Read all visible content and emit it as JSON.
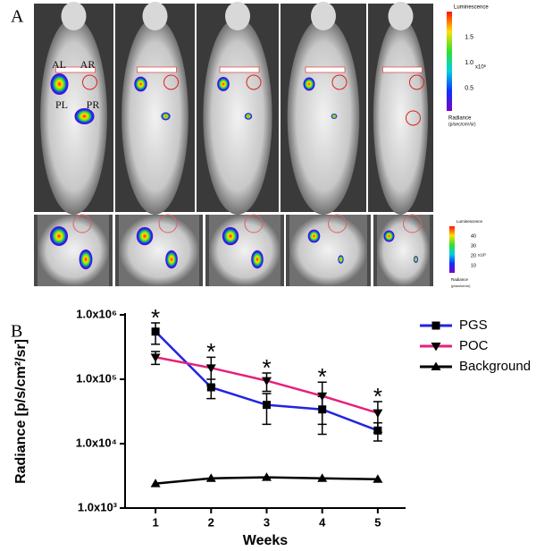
{
  "panel_a": {
    "label": "A",
    "mouse_labels": [
      "AL",
      "AR",
      "PL",
      "PR"
    ],
    "colorbar_top": {
      "title": "Luminescence",
      "ticks": [
        "1.5",
        "1.0",
        "0.5"
      ],
      "unit": "x10⁶",
      "caption": [
        "Radiance",
        "(p/sec/cm²/sr)"
      ]
    },
    "colorbar_bottom": {
      "title": "Luminescence",
      "ticks": [
        "40",
        "30",
        "20",
        "10"
      ],
      "unit": "x10³",
      "caption": [
        "Radiance",
        "(p/sec/cm²/sr)"
      ]
    }
  },
  "chart_data": {
    "type": "line",
    "panel_label": "B",
    "x_label": "Weeks",
    "y_label": "Radiance [p/s/cm²/sr]",
    "x": [
      1,
      2,
      3,
      4,
      5
    ],
    "xlim": [
      0.5,
      5.5
    ],
    "xticks": [
      1,
      2,
      3,
      4,
      5
    ],
    "ylim": [
      1000,
      1000000
    ],
    "yticks": [
      {
        "value": 1000,
        "label": "1.0x10³"
      },
      {
        "value": 10000,
        "label": "1.0x10⁴"
      },
      {
        "value": 100000,
        "label": "1.0x10⁵"
      },
      {
        "value": 1000000,
        "label": "1.0x10⁶"
      }
    ],
    "log_y": true,
    "legend": "upper right",
    "series": [
      {
        "name": "PGS",
        "color": "#2323e0",
        "marker": "square",
        "values": [
          550000,
          75000,
          40000,
          34000,
          16000
        ],
        "errors": [
          200000,
          25000,
          20000,
          20000,
          5000
        ]
      },
      {
        "name": "POC",
        "color": "#e6207a",
        "marker": "triangle-down",
        "values": [
          220000,
          150000,
          95000,
          55000,
          30000
        ],
        "errors": [
          50000,
          70000,
          30000,
          35000,
          15000
        ]
      },
      {
        "name": "Background",
        "color": "#000000",
        "marker": "triangle-up",
        "values": [
          2400,
          2900,
          3000,
          2900,
          2800
        ]
      }
    ],
    "annotations": [
      "*",
      "*",
      "*",
      "*",
      "*"
    ]
  }
}
